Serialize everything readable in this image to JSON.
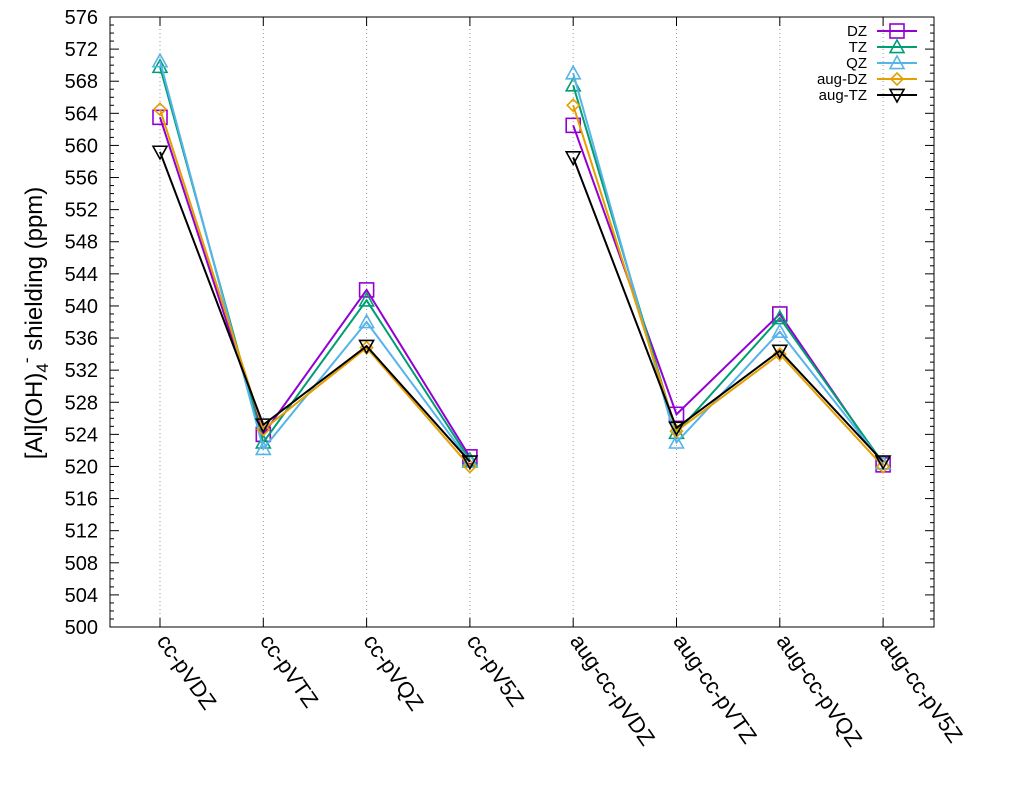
{
  "chart_data": {
    "type": "line",
    "title": "",
    "xlabel": "",
    "ylabel": {
      "prefix": "[Al](OH)",
      "subscript": "4",
      "superscript": "-",
      "suffix": " shielding (ppm)"
    },
    "categories": [
      "cc-pVDZ",
      "cc-pVTZ",
      "cc-pVQZ",
      "cc-pV5Z",
      "aug-cc-pVDZ",
      "aug-cc-pVTZ",
      "aug-cc-pVQZ",
      "aug-cc-pV5Z"
    ],
    "ylim": [
      500,
      576
    ],
    "ytick_step": 4,
    "grid": "vertical dotted lines at categories",
    "legend_position": "top-right",
    "series": [
      {
        "name": "DZ",
        "color": "#9400d3",
        "marker": "square",
        "values": [
          563.5,
          524.0,
          542.0,
          521.2,
          562.5,
          526.5,
          539.0,
          520.2
        ]
      },
      {
        "name": "TZ",
        "color": "#009e73",
        "marker": "triangle-up",
        "values": [
          569.8,
          523.0,
          540.7,
          520.8,
          567.5,
          524.2,
          538.5,
          520.4
        ]
      },
      {
        "name": "QZ",
        "color": "#56b4e9",
        "marker": "triangle-up",
        "values": [
          570.5,
          522.2,
          538.0,
          520.6,
          569.0,
          523.0,
          536.8,
          520.4
        ]
      },
      {
        "name": "aug-DZ",
        "color": "#e69f00",
        "marker": "diamond",
        "values": [
          564.5,
          524.6,
          534.8,
          520.0,
          565.0,
          524.4,
          534.0,
          520.0
        ]
      },
      {
        "name": "aug-TZ",
        "color": "#000000",
        "marker": "triangle-down",
        "values": [
          559.2,
          525.2,
          535.0,
          520.6,
          558.5,
          524.8,
          534.4,
          520.6
        ]
      }
    ]
  }
}
